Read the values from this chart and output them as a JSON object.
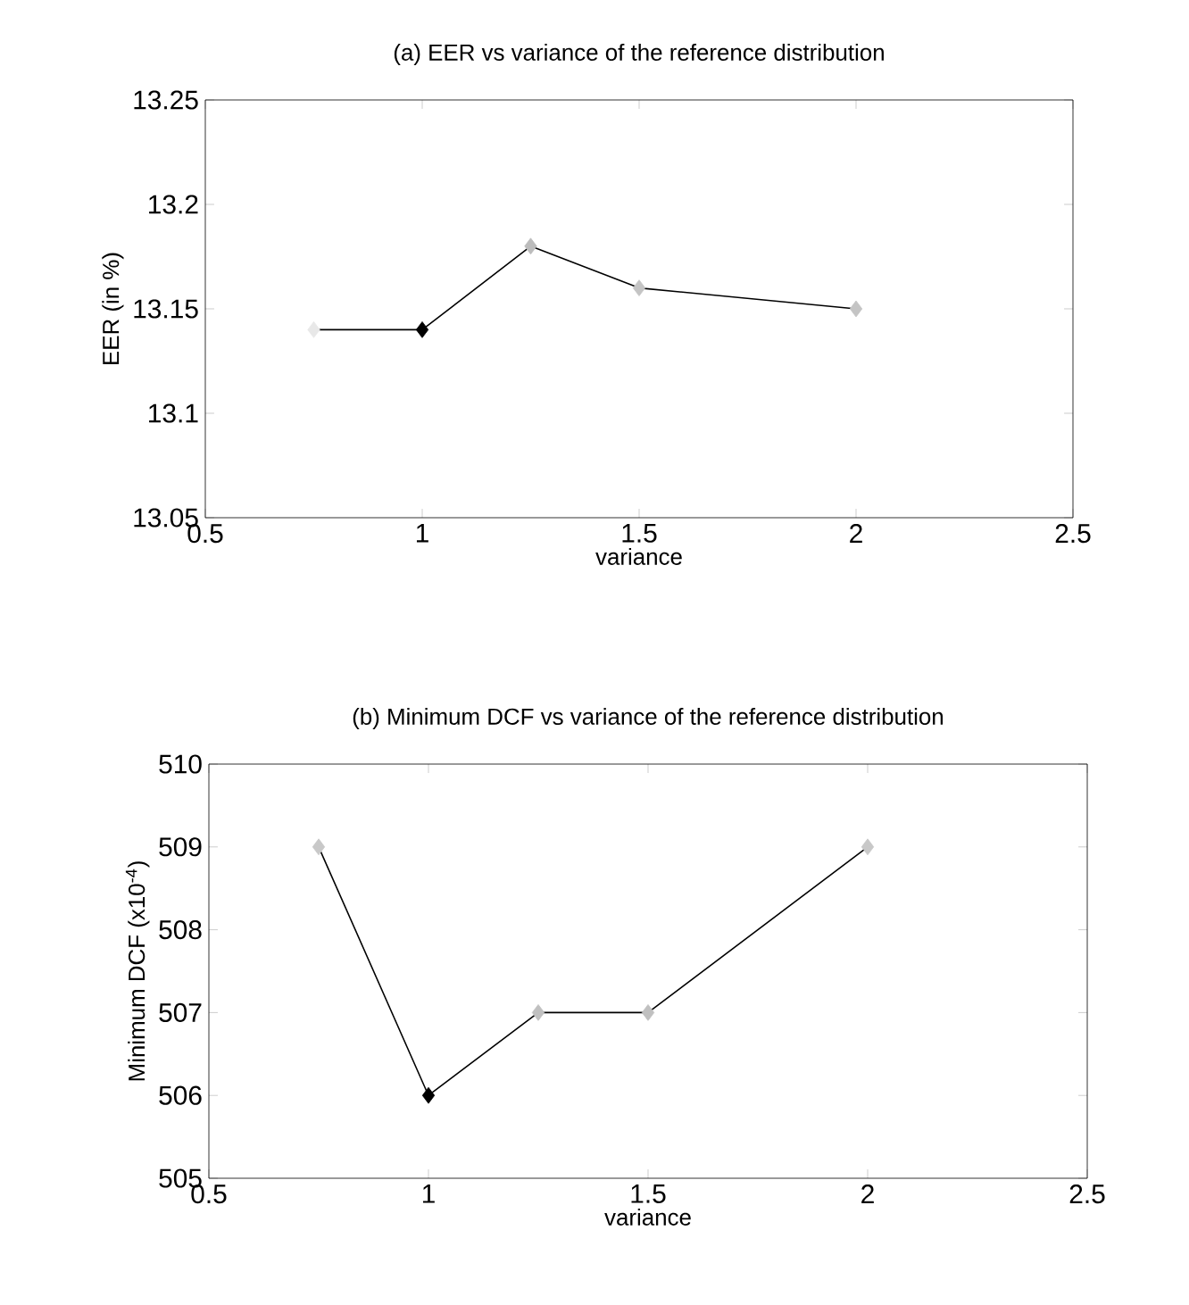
{
  "chart_data": [
    {
      "type": "line",
      "title": "(a) EER vs variance of the reference distribution",
      "xlabel": "variance",
      "ylabel": "EER (in %)",
      "x": [
        0.75,
        1,
        1.25,
        1.5,
        2
      ],
      "series": [
        {
          "color": "#000000",
          "colors": [
            "#e8e8e8",
            "#000000",
            "#bcbcbc",
            "#c4c4c4",
            "#c4c4c4"
          ],
          "values": [
            13.14,
            13.14,
            13.18,
            13.16,
            13.15
          ]
        }
      ],
      "xlim": [
        0.5,
        2.5
      ],
      "ylim": [
        13.05,
        13.25
      ],
      "xticks": [
        0.5,
        1,
        1.5,
        2,
        2.5
      ],
      "yticks": [
        13.05,
        13.1,
        13.15,
        13.2,
        13.25
      ],
      "marker": "diamond",
      "line_style": "solid"
    },
    {
      "type": "line",
      "title": "(b) Minimum DCF vs variance of the reference distribution",
      "xlabel": "variance",
      "ylabel": "Minimum DCF (x10$^{-4}$)",
      "x": [
        0.75,
        1,
        1.25,
        1.5,
        2
      ],
      "series": [
        {
          "color": "#000000",
          "colors": [
            "#c8c8c8",
            "#000000",
            "#c0c0c0",
            "#c0c0c0",
            "#c8c8c8"
          ],
          "values": [
            509,
            506,
            507,
            507,
            509
          ]
        }
      ],
      "xlim": [
        0.5,
        2.5
      ],
      "ylim": [
        505,
        510
      ],
      "xticks": [
        0.5,
        1,
        1.5,
        2,
        2.5
      ],
      "yticks": [
        505,
        506,
        507,
        508,
        509,
        510
      ],
      "marker": "diamond",
      "line_style": "solid"
    }
  ]
}
